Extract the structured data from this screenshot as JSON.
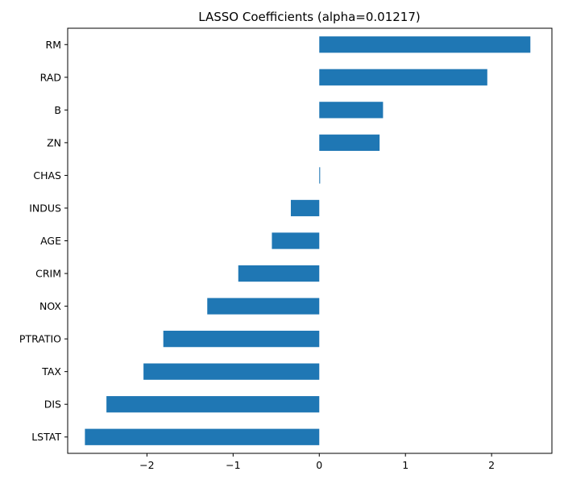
{
  "chart_data": {
    "type": "bar",
    "orientation": "horizontal",
    "title": "LASSO Coefficients (alpha=0.01217)",
    "xlabel": "",
    "ylabel": "",
    "xlim": [
      -2.92,
      2.7
    ],
    "xticks": [
      {
        "value": -2,
        "label": "−2"
      },
      {
        "value": -1,
        "label": "−1"
      },
      {
        "value": 0,
        "label": "0"
      },
      {
        "value": 1,
        "label": "1"
      },
      {
        "value": 2,
        "label": "2"
      }
    ],
    "grid": false,
    "bar_color": "#1f77b4",
    "categories": [
      "RM",
      "RAD",
      "B",
      "ZN",
      "CHAS",
      "INDUS",
      "AGE",
      "CRIM",
      "NOX",
      "PTRATIO",
      "TAX",
      "DIS",
      "LSTAT"
    ],
    "values": [
      2.45,
      1.95,
      0.74,
      0.7,
      0.01,
      -0.33,
      -0.55,
      -0.94,
      -1.3,
      -1.81,
      -2.04,
      -2.47,
      -2.72
    ]
  }
}
